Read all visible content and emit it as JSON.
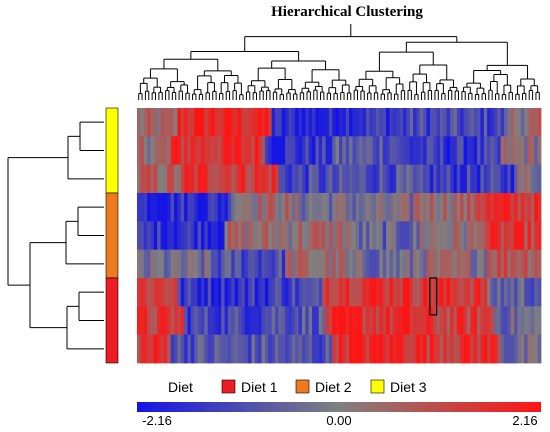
{
  "chart_data": {
    "type": "heatmap",
    "title": "Hierarchical Clustering",
    "n_columns": 120,
    "row_groups": [
      {
        "group": "Diet 3",
        "color": "#ffff00",
        "rows": 3
      },
      {
        "group": "Diet 2",
        "color": "#ee7a1d",
        "rows": 3
      },
      {
        "group": "Diet 1",
        "color": "#ee1c24",
        "rows": 3
      }
    ],
    "color_scale": {
      "min": -2.16,
      "mid": 0.0,
      "max": 2.16,
      "low_color": "#1414e6",
      "mid_color": "#808080",
      "high_color": "#ff1414",
      "tick_labels": [
        "-2.16",
        "0.00",
        "2.16"
      ]
    },
    "row_patterns": [
      {
        "row": 1,
        "segments": [
          [
            0,
            0.3
          ],
          [
            12,
            1.8
          ],
          [
            40,
            -1.8
          ],
          [
            60,
            -1.4
          ],
          [
            80,
            -1.2
          ],
          [
            110,
            0.2
          ]
        ]
      },
      {
        "row": 2,
        "segments": [
          [
            0,
            0.4
          ],
          [
            10,
            1.6
          ],
          [
            38,
            -1.5
          ],
          [
            58,
            -0.8
          ],
          [
            78,
            -1.5
          ],
          [
            108,
            0.1
          ]
        ]
      },
      {
        "row": 3,
        "segments": [
          [
            0,
            0.6
          ],
          [
            14,
            1.5
          ],
          [
            42,
            -1.2
          ],
          [
            62,
            -1.0
          ],
          [
            82,
            -1.4
          ],
          [
            112,
            0.0
          ]
        ]
      },
      {
        "row": 4,
        "segments": [
          [
            0,
            -1.6
          ],
          [
            28,
            0.4
          ],
          [
            45,
            -0.2
          ],
          [
            62,
            -0.3
          ],
          [
            82,
            0.5
          ],
          [
            100,
            1.5
          ]
        ]
      },
      {
        "row": 5,
        "segments": [
          [
            0,
            -1.5
          ],
          [
            26,
            0.3
          ],
          [
            46,
            0.4
          ],
          [
            64,
            -0.6
          ],
          [
            84,
            0.2
          ],
          [
            102,
            1.3
          ]
        ]
      },
      {
        "row": 6,
        "segments": [
          [
            0,
            -0.4
          ],
          [
            22,
            -1.0
          ],
          [
            44,
            0.3
          ],
          [
            62,
            -0.4
          ],
          [
            82,
            0.1
          ],
          [
            104,
            1.0
          ]
        ]
      },
      {
        "row": 7,
        "segments": [
          [
            0,
            1.4
          ],
          [
            12,
            -1.5
          ],
          [
            40,
            -1.2
          ],
          [
            55,
            1.7
          ],
          [
            82,
            1.5
          ],
          [
            104,
            -0.6
          ]
        ]
      },
      {
        "row": 8,
        "segments": [
          [
            0,
            1.3
          ],
          [
            14,
            -1.2
          ],
          [
            38,
            -0.8
          ],
          [
            56,
            1.6
          ],
          [
            84,
            1.3
          ],
          [
            106,
            -0.4
          ]
        ]
      },
      {
        "row": 9,
        "segments": [
          [
            0,
            1.5
          ],
          [
            10,
            -0.9
          ],
          [
            42,
            -1.0
          ],
          [
            58,
            1.8
          ],
          [
            86,
            1.6
          ],
          [
            108,
            -0.5
          ]
        ]
      }
    ],
    "highlight_cell": {
      "row": 7,
      "column": 87
    },
    "legend": {
      "title": "Diet",
      "items": [
        {
          "label": "Diet 1",
          "color": "#ee1c24"
        },
        {
          "label": "Diet 2",
          "color": "#ee7a1d"
        },
        {
          "label": "Diet 3",
          "color": "#ffff00"
        }
      ]
    }
  }
}
